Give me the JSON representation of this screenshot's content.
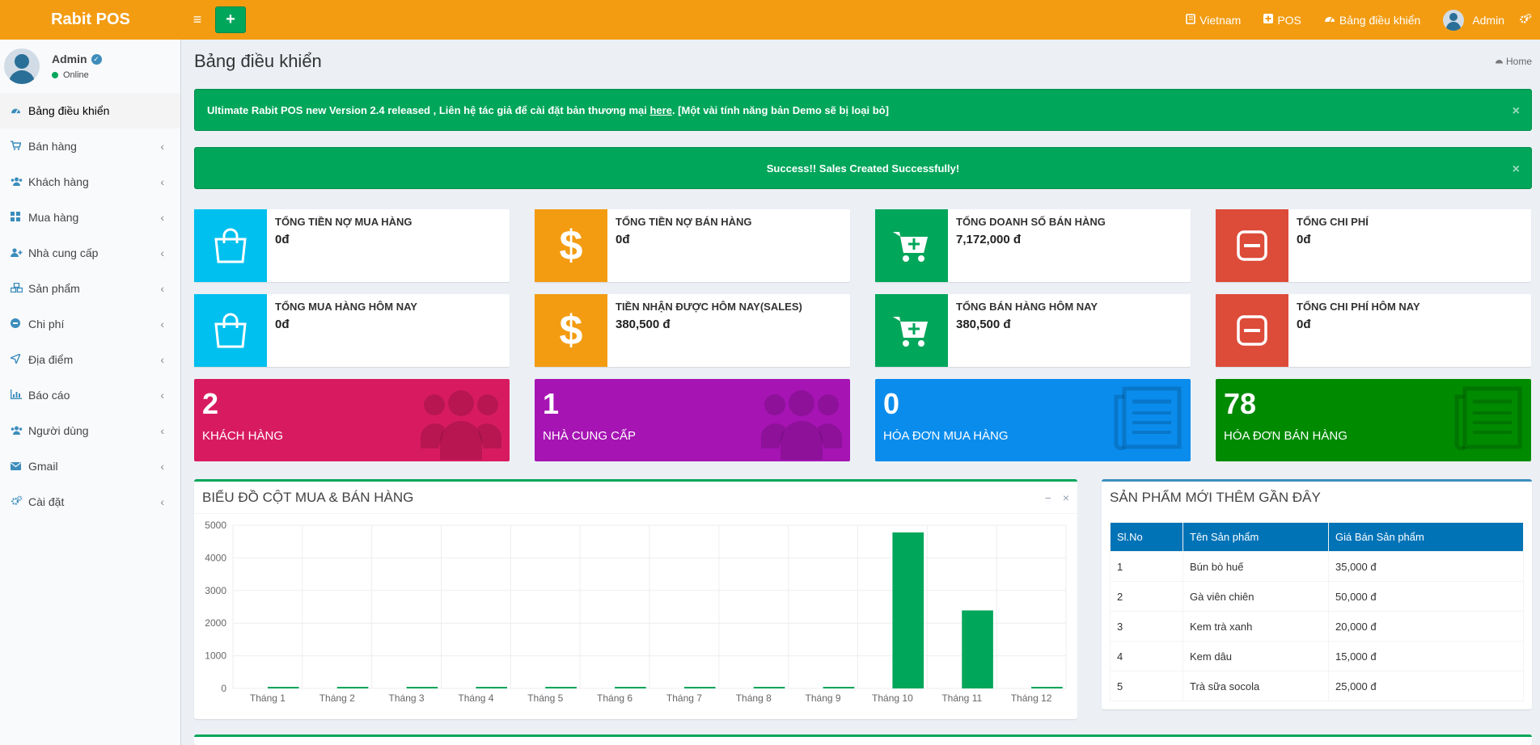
{
  "topbar": {
    "brand": "Rabit POS",
    "add_label": "+",
    "items": [
      {
        "icon": "book-icon",
        "label": "Vietnam"
      },
      {
        "icon": "plus-square-icon",
        "label": "POS"
      },
      {
        "icon": "dashboard-icon",
        "label": "Bảng điều khiển"
      },
      {
        "icon": "user-avatar",
        "label": "Admin"
      }
    ]
  },
  "sidebar": {
    "user": {
      "name": "Admin",
      "status": "Online"
    },
    "items": [
      {
        "label": "Bảng điều khiển",
        "icon": "dashboard-icon"
      },
      {
        "label": "Bán hàng",
        "icon": "cart-icon"
      },
      {
        "label": "Khách hàng",
        "icon": "users-icon"
      },
      {
        "label": "Mua hàng",
        "icon": "grid-icon"
      },
      {
        "label": "Nhà cung cấp",
        "icon": "user-plus-icon"
      },
      {
        "label": "Sản phẩm",
        "icon": "cubes-icon"
      },
      {
        "label": "Chi phí",
        "icon": "minus-circle-icon"
      },
      {
        "label": "Địa điểm",
        "icon": "send-icon"
      },
      {
        "label": "Báo cáo",
        "icon": "bar-chart-icon"
      },
      {
        "label": "Người dùng",
        "icon": "users-icon"
      },
      {
        "label": "Gmail",
        "icon": "envelope-icon"
      },
      {
        "label": "Cài đặt",
        "icon": "cogs-icon"
      }
    ]
  },
  "page": {
    "title": "Bảng điều khiển",
    "breadcrumb": "Home"
  },
  "alerts": {
    "release_prefix": "Ultimate Rabit POS new Version 2.4 released , Liên hệ tác giả để cài đặt bản thương mại ",
    "release_link": "here",
    "release_suffix": ". [Một vài tính năng bản Demo sẽ bị loại bỏ]",
    "success": "Success!! Sales Created Successfully!",
    "close": "×"
  },
  "info_boxes": [
    {
      "label": "Tổng tiền nợ mua hàng",
      "value": "0đ",
      "color": "#00c0ef",
      "icon": "shopping-bag-icon"
    },
    {
      "label": "Tổng tiền nợ bán hàng",
      "value": "0đ",
      "color": "#f39c12",
      "icon": "dollar-icon"
    },
    {
      "label": "Tổng doanh số bán hàng",
      "value": "7,172,000 đ",
      "color": "#00a65a",
      "icon": "cart-plus-icon"
    },
    {
      "label": "Tổng chi phí",
      "value": "0đ",
      "color": "#dd4b39",
      "icon": "minus-square-icon"
    },
    {
      "label": "Tổng mua hàng hôm nay",
      "value": "0đ",
      "color": "#00c0ef",
      "icon": "shopping-bag-icon"
    },
    {
      "label": "Tiền nhận được hôm nay(Sales)",
      "value": "380,500 đ",
      "color": "#f39c12",
      "icon": "dollar-icon"
    },
    {
      "label": "Tổng bán hàng hôm nay",
      "value": "380,500 đ",
      "color": "#00a65a",
      "icon": "cart-plus-icon"
    },
    {
      "label": "Tổng chi phí hôm nay",
      "value": "0đ",
      "color": "#dd4b39",
      "icon": "minus-square-icon"
    }
  ],
  "small_boxes": [
    {
      "number": "2",
      "label": "KHÁCH HÀNG",
      "color": "#d81b60",
      "icon": "users-icon"
    },
    {
      "number": "1",
      "label": "NHÀ CUNG CẤP",
      "color": "#a614b4",
      "icon": "users-icon"
    },
    {
      "number": "0",
      "label": "HÓA ĐƠN MUA HÀNG",
      "color": "#0a8ced",
      "icon": "document-icon"
    },
    {
      "number": "78",
      "label": "HÓA ĐƠN BÁN HÀNG",
      "color": "#008a00",
      "icon": "document-icon"
    }
  ],
  "chart_box": {
    "title": "BIỂU ĐỒ CỘT MUA & BÁN HÀNG",
    "minimize": "−",
    "remove": "×"
  },
  "chart_data": {
    "type": "bar",
    "categories": [
      "Tháng 1",
      "Tháng 2",
      "Tháng 3",
      "Tháng 4",
      "Tháng 5",
      "Tháng 6",
      "Tháng 7",
      "Tháng 8",
      "Tháng 9",
      "Tháng 10",
      "Tháng 11",
      "Tháng 12"
    ],
    "series": [
      {
        "values": [
          0,
          0,
          0,
          0,
          0,
          0,
          0,
          0,
          0,
          4780,
          2390,
          0
        ],
        "color": "#00a65a"
      }
    ],
    "yticks": [
      "0",
      "1000",
      "2000",
      "3000",
      "4000",
      "5000"
    ],
    "ylim": [
      0,
      5000
    ],
    "grid": true
  },
  "products_box": {
    "title": "SẢN PHẨM MỚI THÊM GẦN ĐÂY",
    "headers": [
      "Sl.No",
      "Tên Sản phẩm",
      "Giá Bán Sản phẩm"
    ],
    "rows": [
      [
        "1",
        "Bún bò huế",
        "35,000 đ"
      ],
      [
        "2",
        "Gà viên chiên",
        "50,000 đ"
      ],
      [
        "3",
        "Kem trà xanh",
        "20,000 đ"
      ],
      [
        "4",
        "Kem dâu",
        "15,000 đ"
      ],
      [
        "5",
        "Trà sữa socola",
        "25,000 đ"
      ]
    ]
  }
}
